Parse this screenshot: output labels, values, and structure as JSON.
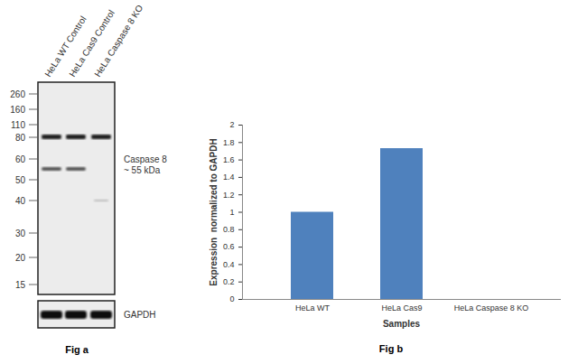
{
  "chart_data": {
    "type": "bar",
    "categories": [
      "HeLa WT",
      "HeLa Cas9",
      "HeLa Caspase 8 KO"
    ],
    "values": [
      1,
      1.73,
      0
    ],
    "color": "#4f81bd",
    "xlabel": "Samples",
    "ylabel": "Expression  normalized to GAPDH",
    "ylim": [
      0,
      2
    ],
    "yticks": [
      0,
      0.2,
      0.4,
      0.6,
      0.8,
      1,
      1.2,
      1.4,
      1.6,
      1.8,
      2
    ],
    "grid": false,
    "caption": "Fig b"
  },
  "blot": {
    "caption": "Fig a",
    "lanes": [
      "HeLa WT Control",
      "HeLa Cas9 Control",
      "HeLa Caspase 8 KO"
    ],
    "markers": [
      260,
      160,
      110,
      80,
      60,
      50,
      40,
      30,
      20,
      15
    ],
    "band_label": [
      "Caspase 8",
      "~ 55 kDa"
    ],
    "loading_control": "GAPDH"
  }
}
